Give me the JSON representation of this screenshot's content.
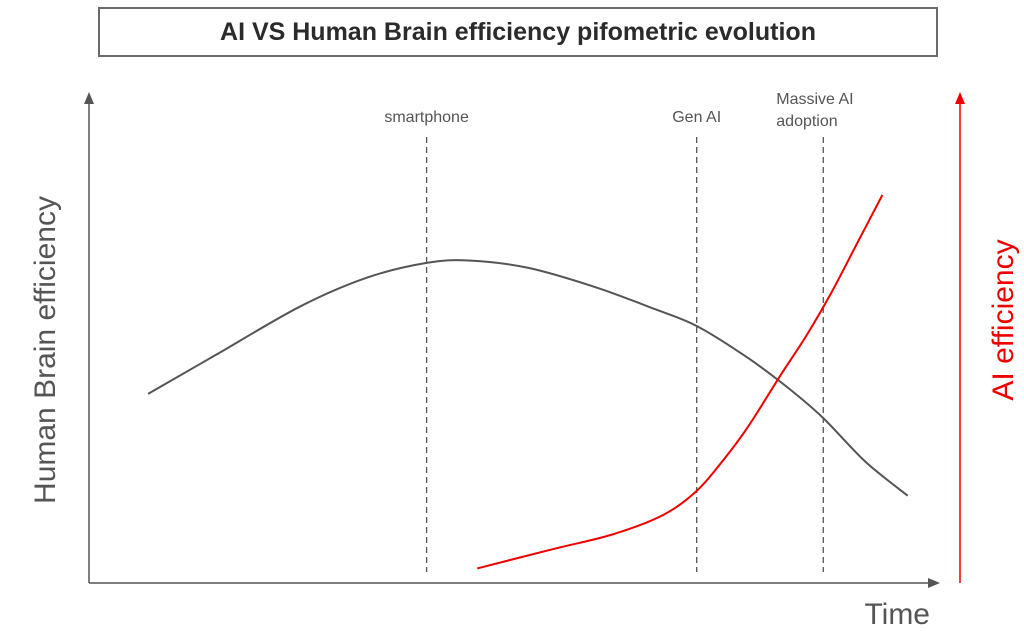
{
  "chart_data": {
    "type": "line",
    "title": "AI VS Human Brain efficiency pifometric evolution",
    "xlabel": "Time",
    "ylabel": "Human Brain efficiency",
    "ylabel_right": "AI efficiency",
    "xlim": [
      0,
      100
    ],
    "ylim": [
      0,
      100
    ],
    "grid": false,
    "events": [
      {
        "label_lines": [
          "smartphone"
        ],
        "x": 40
      },
      {
        "label_lines": [
          "Gen AI"
        ],
        "x": 72
      },
      {
        "label_lines": [
          "Massive AI",
          "adoption"
        ],
        "x": 87
      }
    ],
    "series": [
      {
        "color": "#555555",
        "axis": "left",
        "points": [
          [
            7,
            39
          ],
          [
            15,
            47
          ],
          [
            25,
            57
          ],
          [
            33,
            63
          ],
          [
            40,
            66
          ],
          [
            45,
            66.5
          ],
          [
            52,
            65
          ],
          [
            60,
            61
          ],
          [
            67,
            56.5
          ],
          [
            72,
            53
          ],
          [
            78,
            46.5
          ],
          [
            83,
            40
          ],
          [
            87,
            34
          ],
          [
            92,
            25
          ],
          [
            97,
            18
          ]
        ]
      },
      {
        "color": "#ee0000",
        "axis": "right",
        "points": [
          [
            46,
            3
          ],
          [
            55,
            7
          ],
          [
            62,
            10
          ],
          [
            68,
            14
          ],
          [
            72,
            19
          ],
          [
            75,
            25
          ],
          [
            78,
            32
          ],
          [
            82,
            43
          ],
          [
            85,
            51
          ],
          [
            88,
            60
          ],
          [
            91,
            70
          ],
          [
            94,
            80
          ]
        ]
      }
    ],
    "colors": {
      "human": "#555555",
      "ai": "#ee0000",
      "axis": "#555555"
    }
  }
}
